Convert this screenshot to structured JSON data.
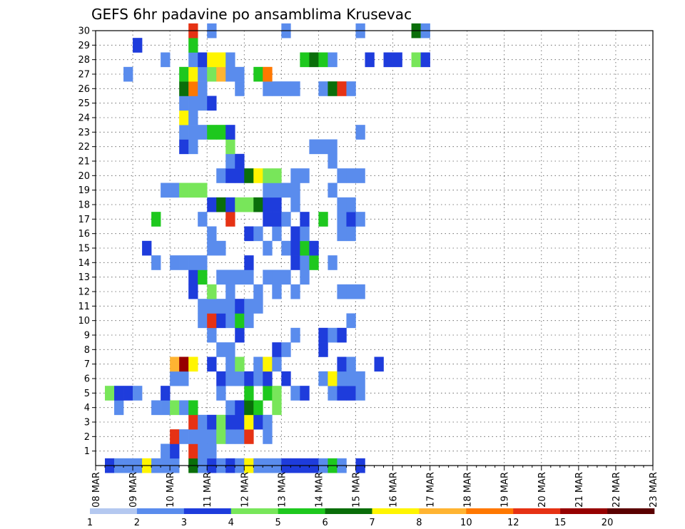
{
  "chart_data": {
    "type": "heatmap",
    "title": "GEFS 6hr padavine po ansamblima Krusevac",
    "xlabel": "",
    "ylabel": "",
    "x_ticks": [
      "08 MAR",
      "09 MAR",
      "10 MAR",
      "11 MAR",
      "12 MAR",
      "13 MAR",
      "14 MAR",
      "15 MAR",
      "16 MAR",
      "17 MAR",
      "18 MAR",
      "19 MAR",
      "20 MAR",
      "21 MAR",
      "22 MAR",
      "23 MAR"
    ],
    "y_ticks": [
      "1",
      "2",
      "3",
      "4",
      "5",
      "6",
      "7",
      "8",
      "9",
      "10",
      "11",
      "12",
      "13",
      "14",
      "15",
      "16",
      "17",
      "18",
      "19",
      "20",
      "21",
      "22",
      "23",
      "24",
      "25",
      "26",
      "27",
      "28",
      "29",
      "30"
    ],
    "xlim": [
      "08 MAR 00Z",
      "23 MAR 00Z"
    ],
    "ylim": [
      0,
      30
    ],
    "grid": true,
    "time_step": "6hr",
    "colorbar": {
      "labels": [
        "1",
        "2",
        "3",
        "4",
        "5",
        "6",
        "7",
        "8",
        "10",
        "12",
        "15",
        "20"
      ],
      "colors": [
        "#b4c8f0",
        "#5a8ced",
        "#1e3cdc",
        "#78e65a",
        "#1ec81e",
        "#0a6e0a",
        "#fff500",
        "#ffb432",
        "#ff7800",
        "#e63214",
        "#960000",
        "#5a0000"
      ]
    },
    "cells": [
      [
        0,
        1,
        2
      ],
      [
        0,
        2,
        1
      ],
      [
        0,
        3,
        1
      ],
      [
        0,
        4,
        1
      ],
      [
        0,
        5,
        6
      ],
      [
        0,
        6,
        1
      ],
      [
        0,
        7,
        1
      ],
      [
        0,
        8,
        1
      ],
      [
        0,
        10,
        5
      ],
      [
        0,
        11,
        1
      ],
      [
        0,
        12,
        2
      ],
      [
        0,
        13,
        1
      ],
      [
        0,
        14,
        2
      ],
      [
        0,
        15,
        1
      ],
      [
        0,
        16,
        6
      ],
      [
        0,
        17,
        1
      ],
      [
        0,
        18,
        1
      ],
      [
        0,
        19,
        1
      ],
      [
        0,
        20,
        2
      ],
      [
        0,
        21,
        2
      ],
      [
        0,
        22,
        2
      ],
      [
        0,
        23,
        2
      ],
      [
        0,
        24,
        1
      ],
      [
        0,
        25,
        4
      ],
      [
        0,
        26,
        1
      ],
      [
        0,
        28,
        2
      ],
      [
        1,
        7,
        1
      ],
      [
        1,
        8,
        2
      ],
      [
        1,
        10,
        9
      ],
      [
        1,
        11,
        1
      ],
      [
        1,
        12,
        1
      ],
      [
        2,
        8,
        9
      ],
      [
        2,
        9,
        1
      ],
      [
        2,
        10,
        1
      ],
      [
        2,
        11,
        1
      ],
      [
        2,
        12,
        1
      ],
      [
        2,
        13,
        3
      ],
      [
        2,
        14,
        1
      ],
      [
        2,
        15,
        1
      ],
      [
        2,
        16,
        9
      ],
      [
        2,
        18,
        1
      ],
      [
        3,
        10,
        9
      ],
      [
        3,
        11,
        1
      ],
      [
        3,
        12,
        2
      ],
      [
        3,
        13,
        3
      ],
      [
        3,
        14,
        2
      ],
      [
        3,
        15,
        2
      ],
      [
        3,
        16,
        6
      ],
      [
        3,
        17,
        2
      ],
      [
        3,
        18,
        1
      ],
      [
        4,
        2,
        1
      ],
      [
        4,
        6,
        1
      ],
      [
        4,
        7,
        1
      ],
      [
        4,
        8,
        3
      ],
      [
        4,
        9,
        1
      ],
      [
        4,
        10,
        4
      ],
      [
        4,
        14,
        1
      ],
      [
        4,
        15,
        2
      ],
      [
        4,
        16,
        5
      ],
      [
        4,
        17,
        4
      ],
      [
        4,
        19,
        3
      ],
      [
        5,
        1,
        3
      ],
      [
        5,
        2,
        2
      ],
      [
        5,
        3,
        2
      ],
      [
        5,
        4,
        1
      ],
      [
        5,
        7,
        2
      ],
      [
        5,
        13,
        1
      ],
      [
        5,
        16,
        4
      ],
      [
        5,
        18,
        4
      ],
      [
        5,
        19,
        3
      ],
      [
        5,
        21,
        1
      ],
      [
        5,
        22,
        2
      ],
      [
        5,
        25,
        1
      ],
      [
        5,
        26,
        2
      ],
      [
        5,
        27,
        2
      ],
      [
        5,
        28,
        1
      ],
      [
        6,
        8,
        1
      ],
      [
        6,
        9,
        1
      ],
      [
        6,
        13,
        2
      ],
      [
        6,
        14,
        1
      ],
      [
        6,
        15,
        1
      ],
      [
        6,
        16,
        2
      ],
      [
        6,
        17,
        1
      ],
      [
        6,
        18,
        2
      ],
      [
        6,
        20,
        2
      ],
      [
        6,
        24,
        1
      ],
      [
        6,
        25,
        6
      ],
      [
        6,
        26,
        1
      ],
      [
        6,
        27,
        1
      ],
      [
        6,
        28,
        1
      ],
      [
        7,
        8,
        7
      ],
      [
        7,
        9,
        10
      ],
      [
        7,
        10,
        6
      ],
      [
        7,
        12,
        2
      ],
      [
        7,
        14,
        1
      ],
      [
        7,
        15,
        3
      ],
      [
        7,
        17,
        1
      ],
      [
        7,
        18,
        6
      ],
      [
        7,
        19,
        1
      ],
      [
        7,
        26,
        2
      ],
      [
        7,
        27,
        1
      ],
      [
        7,
        30,
        2
      ],
      [
        8,
        13,
        1
      ],
      [
        8,
        14,
        1
      ],
      [
        8,
        19,
        2
      ],
      [
        8,
        20,
        1
      ],
      [
        8,
        24,
        2
      ],
      [
        9,
        12,
        1
      ],
      [
        9,
        15,
        2
      ],
      [
        9,
        21,
        1
      ],
      [
        9,
        24,
        2
      ],
      [
        9,
        25,
        1
      ],
      [
        9,
        26,
        2
      ],
      [
        10,
        11,
        1
      ],
      [
        10,
        12,
        9
      ],
      [
        10,
        13,
        2
      ],
      [
        10,
        14,
        1
      ],
      [
        10,
        15,
        4
      ],
      [
        10,
        16,
        1
      ],
      [
        10,
        27,
        1
      ],
      [
        11,
        11,
        1
      ],
      [
        11,
        12,
        1
      ],
      [
        11,
        13,
        1
      ],
      [
        11,
        14,
        1
      ],
      [
        11,
        15,
        2
      ],
      [
        11,
        16,
        1
      ],
      [
        11,
        17,
        1
      ],
      [
        12,
        10,
        2
      ],
      [
        12,
        12,
        3
      ],
      [
        12,
        14,
        1
      ],
      [
        12,
        17,
        1
      ],
      [
        12,
        19,
        1
      ],
      [
        12,
        21,
        1
      ],
      [
        12,
        26,
        1
      ],
      [
        12,
        27,
        1
      ],
      [
        12,
        28,
        1
      ],
      [
        13,
        10,
        2
      ],
      [
        13,
        11,
        4
      ],
      [
        13,
        13,
        1
      ],
      [
        13,
        14,
        1
      ],
      [
        13,
        15,
        1
      ],
      [
        13,
        16,
        1
      ],
      [
        13,
        18,
        1
      ],
      [
        13,
        19,
        1
      ],
      [
        13,
        20,
        1
      ],
      [
        13,
        22,
        1
      ],
      [
        14,
        6,
        1
      ],
      [
        14,
        8,
        1
      ],
      [
        14,
        9,
        1
      ],
      [
        14,
        10,
        1
      ],
      [
        14,
        11,
        1
      ],
      [
        14,
        16,
        2
      ],
      [
        14,
        21,
        2
      ],
      [
        14,
        22,
        1
      ],
      [
        14,
        23,
        4
      ],
      [
        14,
        25,
        1
      ],
      [
        15,
        5,
        2
      ],
      [
        15,
        12,
        1
      ],
      [
        15,
        13,
        1
      ],
      [
        15,
        18,
        1
      ],
      [
        15,
        20,
        1
      ],
      [
        15,
        21,
        2
      ],
      [
        15,
        22,
        4
      ],
      [
        15,
        23,
        2
      ],
      [
        16,
        12,
        1
      ],
      [
        16,
        16,
        2
      ],
      [
        16,
        17,
        1
      ],
      [
        16,
        19,
        1
      ],
      [
        16,
        21,
        2
      ],
      [
        16,
        22,
        1
      ],
      [
        16,
        26,
        1
      ],
      [
        16,
        27,
        1
      ],
      [
        17,
        6,
        4
      ],
      [
        17,
        11,
        1
      ],
      [
        17,
        14,
        9
      ],
      [
        17,
        18,
        2
      ],
      [
        17,
        19,
        2
      ],
      [
        17,
        20,
        1
      ],
      [
        17,
        22,
        2
      ],
      [
        17,
        24,
        4
      ],
      [
        17,
        26,
        1
      ],
      [
        17,
        27,
        2
      ],
      [
        17,
        28,
        1
      ],
      [
        18,
        12,
        2
      ],
      [
        18,
        13,
        5
      ],
      [
        18,
        14,
        2
      ],
      [
        18,
        15,
        3
      ],
      [
        18,
        16,
        3
      ],
      [
        18,
        17,
        5
      ],
      [
        18,
        18,
        2
      ],
      [
        18,
        19,
        2
      ],
      [
        18,
        21,
        1
      ],
      [
        18,
        26,
        1
      ],
      [
        18,
        27,
        1
      ],
      [
        19,
        7,
        1
      ],
      [
        19,
        8,
        1
      ],
      [
        19,
        9,
        3
      ],
      [
        19,
        10,
        3
      ],
      [
        19,
        11,
        3
      ],
      [
        19,
        18,
        1
      ],
      [
        19,
        19,
        1
      ],
      [
        19,
        20,
        1
      ],
      [
        19,
        21,
        1
      ],
      [
        19,
        25,
        1
      ],
      [
        20,
        13,
        1
      ],
      [
        20,
        14,
        2
      ],
      [
        20,
        15,
        2
      ],
      [
        20,
        16,
        5
      ],
      [
        20,
        17,
        6
      ],
      [
        20,
        18,
        3
      ],
      [
        20,
        19,
        3
      ],
      [
        20,
        21,
        1
      ],
      [
        20,
        22,
        1
      ],
      [
        20,
        26,
        1
      ],
      [
        20,
        27,
        1
      ],
      [
        20,
        28,
        1
      ],
      [
        21,
        14,
        1
      ],
      [
        21,
        15,
        2
      ],
      [
        21,
        25,
        1
      ],
      [
        22,
        9,
        2
      ],
      [
        22,
        10,
        1
      ],
      [
        22,
        14,
        3
      ],
      [
        22,
        23,
        1
      ],
      [
        22,
        24,
        1
      ],
      [
        22,
        25,
        1
      ],
      [
        23,
        9,
        1
      ],
      [
        23,
        10,
        1
      ],
      [
        23,
        11,
        1
      ],
      [
        23,
        12,
        4
      ],
      [
        23,
        13,
        4
      ],
      [
        23,
        14,
        2
      ],
      [
        23,
        28,
        1
      ],
      [
        24,
        9,
        6
      ],
      [
        24,
        10,
        1
      ],
      [
        25,
        9,
        1
      ],
      [
        25,
        10,
        1
      ],
      [
        25,
        11,
        1
      ],
      [
        25,
        12,
        2
      ],
      [
        26,
        9,
        5
      ],
      [
        26,
        10,
        8
      ],
      [
        26,
        11,
        1
      ],
      [
        26,
        15,
        1
      ],
      [
        26,
        18,
        1
      ],
      [
        26,
        19,
        1
      ],
      [
        26,
        20,
        1
      ],
      [
        26,
        21,
        1
      ],
      [
        26,
        24,
        1
      ],
      [
        26,
        25,
        5
      ],
      [
        26,
        26,
        9
      ],
      [
        26,
        27,
        1
      ],
      [
        27,
        3,
        1
      ],
      [
        27,
        9,
        4
      ],
      [
        27,
        10,
        6
      ],
      [
        27,
        11,
        1
      ],
      [
        27,
        12,
        3
      ],
      [
        27,
        13,
        7
      ],
      [
        27,
        14,
        1
      ],
      [
        27,
        15,
        1
      ],
      [
        27,
        17,
        4
      ],
      [
        27,
        18,
        8
      ],
      [
        28,
        7,
        1
      ],
      [
        28,
        10,
        1
      ],
      [
        28,
        11,
        2
      ],
      [
        28,
        12,
        6
      ],
      [
        28,
        13,
        6
      ],
      [
        28,
        14,
        1
      ],
      [
        28,
        22,
        4
      ],
      [
        28,
        23,
        5
      ],
      [
        28,
        24,
        4
      ],
      [
        28,
        25,
        1
      ],
      [
        28,
        29,
        2
      ],
      [
        28,
        31,
        2
      ],
      [
        28,
        32,
        2
      ],
      [
        28,
        34,
        3
      ],
      [
        28,
        35,
        2
      ],
      [
        29,
        4,
        2
      ],
      [
        29,
        10,
        4
      ],
      [
        30,
        10,
        9
      ],
      [
        30,
        12,
        1
      ],
      [
        30,
        20,
        1
      ],
      [
        30,
        28,
        1
      ],
      [
        30,
        34,
        5
      ],
      [
        30,
        35,
        1
      ]
    ]
  }
}
